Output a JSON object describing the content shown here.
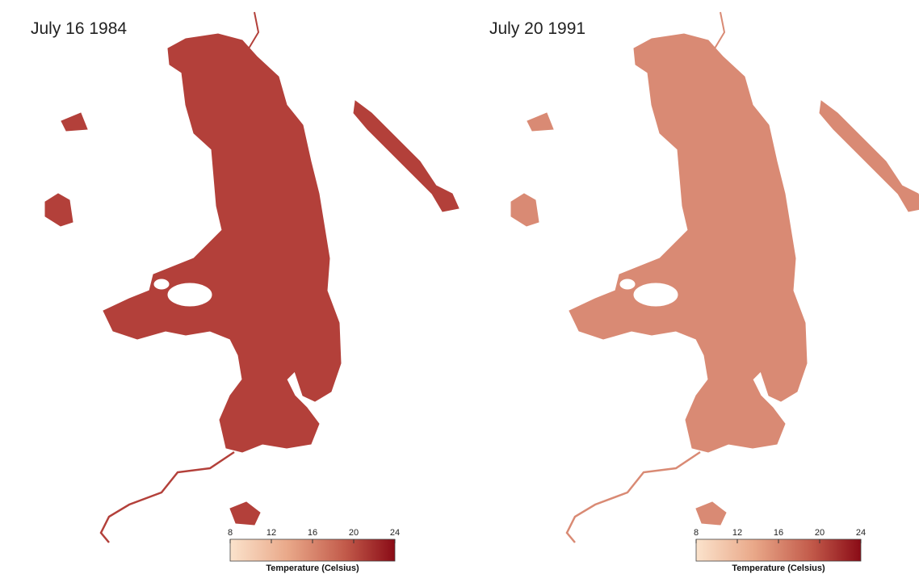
{
  "panels": [
    {
      "title": "July 16 1984",
      "colorbar": {
        "range": [
          8,
          24
        ],
        "ticks": [
          8,
          12,
          16,
          20,
          24
        ],
        "label": "Temperature (Celsius)"
      }
    },
    {
      "title": "July 20 1991",
      "colorbar": {
        "range": [
          8,
          24
        ],
        "ticks": [
          8,
          12,
          16,
          20,
          24
        ],
        "label": "Temperature (Celsius)"
      }
    }
  ]
}
